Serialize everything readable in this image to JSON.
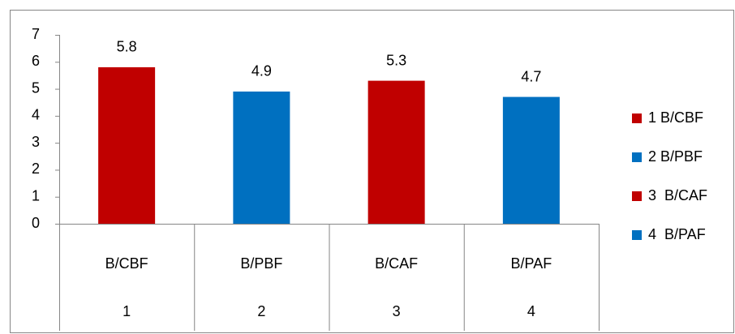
{
  "chart_data": {
    "type": "bar",
    "categories": [
      "B/CBF",
      "B/PBF",
      "B/CAF",
      "B/PAF"
    ],
    "groups": [
      "1",
      "2",
      "3",
      "4"
    ],
    "values": [
      5.8,
      4.9,
      5.3,
      4.7
    ],
    "colors": [
      "#c00000",
      "#0070c0",
      "#c00000",
      "#0070c0"
    ],
    "legend": [
      {
        "name": "1 B/CBF",
        "color": "#c00000"
      },
      {
        "name": "2 B/PBF",
        "color": "#0070c0"
      },
      {
        "name": "3  B/CAF",
        "color": "#c00000"
      },
      {
        "name": "4  B/PAF",
        "color": "#0070c0"
      }
    ],
    "legend_position": "right",
    "ylim": [
      0,
      7
    ],
    "yticks": [
      0,
      1,
      2,
      3,
      4,
      5,
      6,
      7
    ],
    "grid": false
  }
}
